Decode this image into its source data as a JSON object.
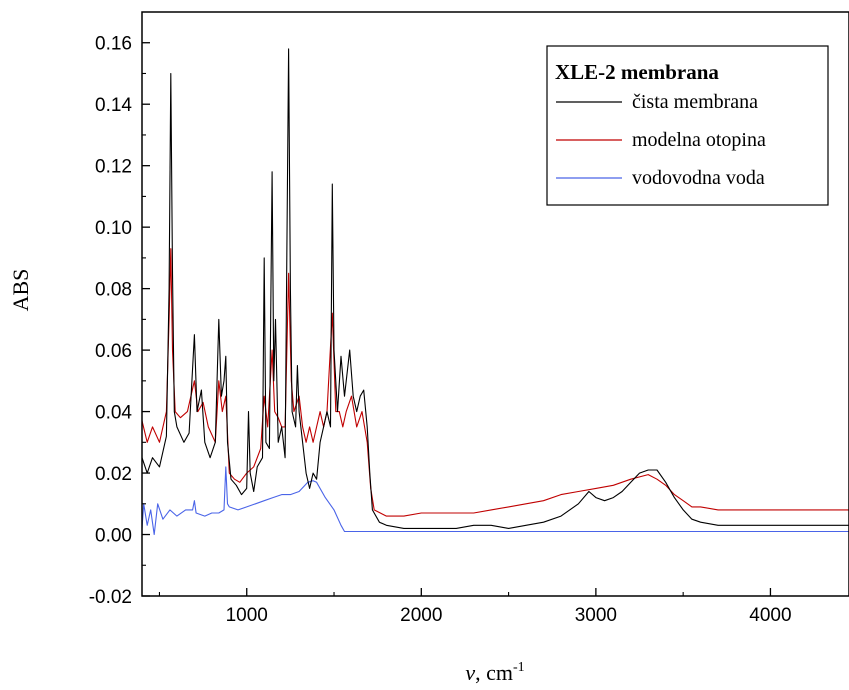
{
  "chart_data": {
    "type": "line",
    "title": "",
    "xlabel": "v, cm",
    "xlabel_superscript": "-1",
    "ylabel": "ABS",
    "xlim": [
      400,
      4450
    ],
    "ylim": [
      -0.02,
      0.17
    ],
    "xticks": [
      1000,
      2000,
      3000,
      4000
    ],
    "xtick_labels": [
      "1000",
      "2000",
      "3000",
      "4000"
    ],
    "yticks": [
      -0.02,
      0.0,
      0.02,
      0.04,
      0.06,
      0.08,
      0.1,
      0.12,
      0.14,
      0.16
    ],
    "ytick_labels": [
      "-0.02",
      "0.00",
      "0.02",
      "0.04",
      "0.06",
      "0.08",
      "0.10",
      "0.12",
      "0.14",
      "0.16"
    ],
    "grid": false,
    "legend": {
      "title": "XLE-2 membrana",
      "placement": "top-right"
    },
    "series": [
      {
        "name": "čista membrana",
        "color": "#000000",
        "points": [
          [
            400,
            0.025
          ],
          [
            430,
            0.02
          ],
          [
            460,
            0.025
          ],
          [
            500,
            0.022
          ],
          [
            540,
            0.032
          ],
          [
            555,
            0.08
          ],
          [
            565,
            0.15
          ],
          [
            575,
            0.085
          ],
          [
            585,
            0.04
          ],
          [
            600,
            0.035
          ],
          [
            640,
            0.03
          ],
          [
            670,
            0.033
          ],
          [
            700,
            0.065
          ],
          [
            715,
            0.04
          ],
          [
            740,
            0.047
          ],
          [
            760,
            0.03
          ],
          [
            790,
            0.025
          ],
          [
            820,
            0.03
          ],
          [
            840,
            0.07
          ],
          [
            855,
            0.045
          ],
          [
            870,
            0.05
          ],
          [
            880,
            0.058
          ],
          [
            890,
            0.03
          ],
          [
            910,
            0.018
          ],
          [
            940,
            0.016
          ],
          [
            970,
            0.013
          ],
          [
            1000,
            0.015
          ],
          [
            1010,
            0.04
          ],
          [
            1020,
            0.02
          ],
          [
            1040,
            0.014
          ],
          [
            1060,
            0.022
          ],
          [
            1090,
            0.025
          ],
          [
            1100,
            0.09
          ],
          [
            1110,
            0.03
          ],
          [
            1130,
            0.028
          ],
          [
            1145,
            0.118
          ],
          [
            1155,
            0.05
          ],
          [
            1165,
            0.07
          ],
          [
            1180,
            0.03
          ],
          [
            1200,
            0.035
          ],
          [
            1220,
            0.025
          ],
          [
            1240,
            0.158
          ],
          [
            1250,
            0.08
          ],
          [
            1260,
            0.04
          ],
          [
            1280,
            0.035
          ],
          [
            1290,
            0.055
          ],
          [
            1300,
            0.04
          ],
          [
            1320,
            0.03
          ],
          [
            1340,
            0.02
          ],
          [
            1360,
            0.015
          ],
          [
            1380,
            0.02
          ],
          [
            1400,
            0.018
          ],
          [
            1420,
            0.03
          ],
          [
            1440,
            0.035
          ],
          [
            1460,
            0.04
          ],
          [
            1480,
            0.035
          ],
          [
            1490,
            0.114
          ],
          [
            1500,
            0.06
          ],
          [
            1520,
            0.04
          ],
          [
            1540,
            0.058
          ],
          [
            1560,
            0.045
          ],
          [
            1590,
            0.06
          ],
          [
            1610,
            0.045
          ],
          [
            1630,
            0.04
          ],
          [
            1650,
            0.045
          ],
          [
            1670,
            0.047
          ],
          [
            1690,
            0.035
          ],
          [
            1705,
            0.02
          ],
          [
            1720,
            0.008
          ],
          [
            1760,
            0.004
          ],
          [
            1800,
            0.003
          ],
          [
            1900,
            0.002
          ],
          [
            2000,
            0.002
          ],
          [
            2100,
            0.002
          ],
          [
            2200,
            0.002
          ],
          [
            2300,
            0.003
          ],
          [
            2400,
            0.003
          ],
          [
            2500,
            0.002
          ],
          [
            2600,
            0.003
          ],
          [
            2700,
            0.004
          ],
          [
            2800,
            0.006
          ],
          [
            2900,
            0.01
          ],
          [
            2960,
            0.014
          ],
          [
            3000,
            0.012
          ],
          [
            3050,
            0.011
          ],
          [
            3100,
            0.012
          ],
          [
            3150,
            0.014
          ],
          [
            3200,
            0.017
          ],
          [
            3250,
            0.02
          ],
          [
            3300,
            0.021
          ],
          [
            3350,
            0.021
          ],
          [
            3400,
            0.017
          ],
          [
            3450,
            0.012
          ],
          [
            3500,
            0.008
          ],
          [
            3550,
            0.005
          ],
          [
            3600,
            0.004
          ],
          [
            3700,
            0.003
          ],
          [
            3800,
            0.003
          ],
          [
            3900,
            0.003
          ],
          [
            4000,
            0.003
          ],
          [
            4100,
            0.003
          ],
          [
            4200,
            0.003
          ],
          [
            4300,
            0.003
          ],
          [
            4450,
            0.003
          ]
        ]
      },
      {
        "name": "modelna otopina",
        "color": "#c00000",
        "points": [
          [
            400,
            0.037
          ],
          [
            430,
            0.03
          ],
          [
            460,
            0.035
          ],
          [
            500,
            0.03
          ],
          [
            540,
            0.04
          ],
          [
            555,
            0.07
          ],
          [
            565,
            0.093
          ],
          [
            575,
            0.06
          ],
          [
            590,
            0.04
          ],
          [
            620,
            0.038
          ],
          [
            660,
            0.04
          ],
          [
            700,
            0.05
          ],
          [
            720,
            0.04
          ],
          [
            750,
            0.043
          ],
          [
            780,
            0.035
          ],
          [
            820,
            0.03
          ],
          [
            840,
            0.05
          ],
          [
            860,
            0.04
          ],
          [
            880,
            0.045
          ],
          [
            900,
            0.02
          ],
          [
            930,
            0.018
          ],
          [
            960,
            0.017
          ],
          [
            1000,
            0.02
          ],
          [
            1040,
            0.022
          ],
          [
            1080,
            0.028
          ],
          [
            1100,
            0.045
          ],
          [
            1120,
            0.035
          ],
          [
            1145,
            0.06
          ],
          [
            1160,
            0.04
          ],
          [
            1180,
            0.038
          ],
          [
            1200,
            0.035
          ],
          [
            1220,
            0.035
          ],
          [
            1240,
            0.085
          ],
          [
            1255,
            0.05
          ],
          [
            1270,
            0.04
          ],
          [
            1300,
            0.045
          ],
          [
            1320,
            0.035
          ],
          [
            1340,
            0.03
          ],
          [
            1360,
            0.035
          ],
          [
            1380,
            0.03
          ],
          [
            1400,
            0.035
          ],
          [
            1420,
            0.04
          ],
          [
            1440,
            0.035
          ],
          [
            1460,
            0.04
          ],
          [
            1490,
            0.072
          ],
          [
            1510,
            0.04
          ],
          [
            1530,
            0.04
          ],
          [
            1550,
            0.035
          ],
          [
            1570,
            0.04
          ],
          [
            1600,
            0.045
          ],
          [
            1630,
            0.035
          ],
          [
            1660,
            0.04
          ],
          [
            1690,
            0.03
          ],
          [
            1710,
            0.015
          ],
          [
            1730,
            0.008
          ],
          [
            1800,
            0.006
          ],
          [
            1900,
            0.006
          ],
          [
            2000,
            0.007
          ],
          [
            2100,
            0.007
          ],
          [
            2200,
            0.007
          ],
          [
            2300,
            0.007
          ],
          [
            2400,
            0.008
          ],
          [
            2500,
            0.009
          ],
          [
            2600,
            0.01
          ],
          [
            2700,
            0.011
          ],
          [
            2800,
            0.013
          ],
          [
            2900,
            0.014
          ],
          [
            3000,
            0.015
          ],
          [
            3100,
            0.016
          ],
          [
            3200,
            0.018
          ],
          [
            3300,
            0.0195
          ],
          [
            3350,
            0.018
          ],
          [
            3400,
            0.016
          ],
          [
            3450,
            0.013
          ],
          [
            3500,
            0.011
          ],
          [
            3550,
            0.009
          ],
          [
            3600,
            0.009
          ],
          [
            3700,
            0.008
          ],
          [
            3800,
            0.008
          ],
          [
            3900,
            0.008
          ],
          [
            4000,
            0.008
          ],
          [
            4100,
            0.008
          ],
          [
            4200,
            0.008
          ],
          [
            4300,
            0.008
          ],
          [
            4450,
            0.008
          ]
        ]
      },
      {
        "name": "vodovodna voda",
        "color": "#4a64e8",
        "points": [
          [
            400,
            0.002
          ],
          [
            410,
            0.01
          ],
          [
            430,
            0.003
          ],
          [
            450,
            0.008
          ],
          [
            470,
            0.0
          ],
          [
            490,
            0.01
          ],
          [
            520,
            0.005
          ],
          [
            560,
            0.008
          ],
          [
            600,
            0.006
          ],
          [
            650,
            0.008
          ],
          [
            690,
            0.008
          ],
          [
            700,
            0.011
          ],
          [
            710,
            0.007
          ],
          [
            760,
            0.006
          ],
          [
            800,
            0.007
          ],
          [
            840,
            0.007
          ],
          [
            870,
            0.008
          ],
          [
            880,
            0.022
          ],
          [
            890,
            0.01
          ],
          [
            900,
            0.009
          ],
          [
            950,
            0.008
          ],
          [
            1000,
            0.009
          ],
          [
            1050,
            0.01
          ],
          [
            1100,
            0.011
          ],
          [
            1150,
            0.012
          ],
          [
            1200,
            0.013
          ],
          [
            1250,
            0.013
          ],
          [
            1300,
            0.014
          ],
          [
            1350,
            0.017
          ],
          [
            1380,
            0.0175
          ],
          [
            1400,
            0.017
          ],
          [
            1450,
            0.012
          ],
          [
            1500,
            0.008
          ],
          [
            1540,
            0.003
          ],
          [
            1560,
            0.001
          ],
          [
            1600,
            0.001
          ],
          [
            1700,
            0.001
          ],
          [
            1800,
            0.001
          ],
          [
            1900,
            0.001
          ],
          [
            2000,
            0.001
          ],
          [
            2100,
            0.001
          ],
          [
            2200,
            0.001
          ],
          [
            2300,
            0.001
          ],
          [
            2400,
            0.001
          ],
          [
            2600,
            0.001
          ],
          [
            2800,
            0.001
          ],
          [
            3000,
            0.001
          ],
          [
            3200,
            0.001
          ],
          [
            3400,
            0.001
          ],
          [
            3600,
            0.001
          ],
          [
            3800,
            0.001
          ],
          [
            4000,
            0.001
          ],
          [
            4200,
            0.001
          ],
          [
            4450,
            0.001
          ]
        ]
      }
    ]
  }
}
